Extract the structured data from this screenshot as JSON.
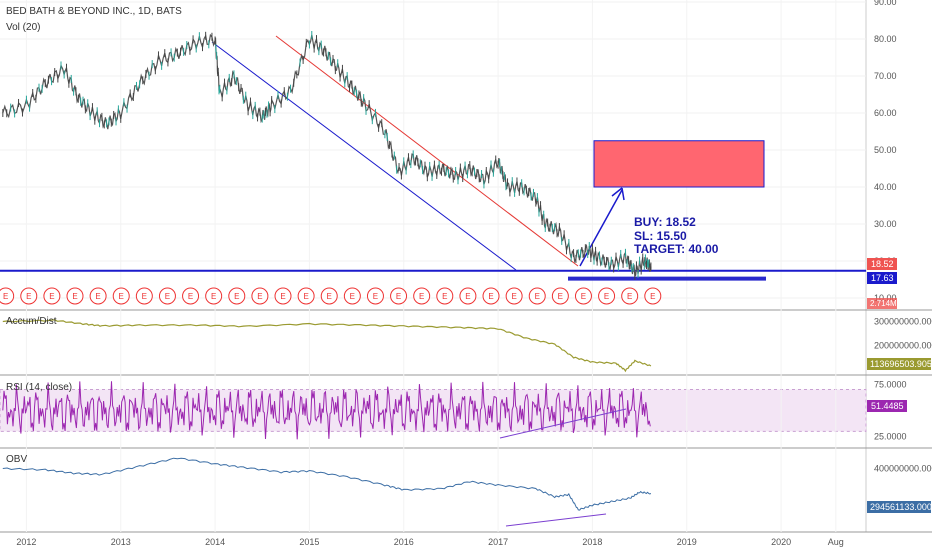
{
  "chart_data": {
    "type": "line",
    "title": "BED BATH & BEYOND INC., 1D, BATS",
    "subtitle": "Vol (20)",
    "x_ticks": [
      "2012",
      "2013",
      "2014",
      "2015",
      "2016",
      "2017",
      "2018",
      "2019",
      "2020",
      "Aug"
    ],
    "x_tick_years": [
      2012,
      2013,
      2014,
      2015,
      2016,
      2017,
      2018,
      2019,
      2020,
      2020.58
    ],
    "price_axis": {
      "ticks": [
        "90.00",
        "80.00",
        "70.00",
        "60.00",
        "50.00",
        "40.00",
        "30.00",
        "20.00",
        "10.00"
      ],
      "values": [
        90,
        80,
        70,
        60,
        50,
        40,
        30,
        20,
        10
      ],
      "ylim": [
        10,
        90
      ]
    },
    "price_series": [
      {
        "x": 2011.75,
        "y": 60
      },
      {
        "x": 2012.0,
        "y": 62
      },
      {
        "x": 2012.2,
        "y": 68
      },
      {
        "x": 2012.4,
        "y": 72
      },
      {
        "x": 2012.55,
        "y": 64
      },
      {
        "x": 2012.7,
        "y": 60
      },
      {
        "x": 2012.85,
        "y": 57
      },
      {
        "x": 2013.0,
        "y": 60
      },
      {
        "x": 2013.2,
        "y": 68
      },
      {
        "x": 2013.4,
        "y": 74
      },
      {
        "x": 2013.6,
        "y": 76
      },
      {
        "x": 2013.8,
        "y": 79
      },
      {
        "x": 2014.0,
        "y": 80
      },
      {
        "x": 2014.05,
        "y": 65
      },
      {
        "x": 2014.2,
        "y": 70
      },
      {
        "x": 2014.35,
        "y": 62
      },
      {
        "x": 2014.5,
        "y": 59
      },
      {
        "x": 2014.6,
        "y": 62
      },
      {
        "x": 2014.8,
        "y": 66
      },
      {
        "x": 2015.0,
        "y": 80
      },
      {
        "x": 2015.15,
        "y": 77
      },
      {
        "x": 2015.3,
        "y": 72
      },
      {
        "x": 2015.45,
        "y": 67
      },
      {
        "x": 2015.6,
        "y": 62
      },
      {
        "x": 2015.8,
        "y": 55
      },
      {
        "x": 2015.95,
        "y": 44
      },
      {
        "x": 2016.1,
        "y": 48
      },
      {
        "x": 2016.25,
        "y": 44
      },
      {
        "x": 2016.4,
        "y": 45
      },
      {
        "x": 2016.55,
        "y": 43
      },
      {
        "x": 2016.7,
        "y": 45
      },
      {
        "x": 2016.85,
        "y": 42
      },
      {
        "x": 2017.0,
        "y": 47
      },
      {
        "x": 2017.1,
        "y": 40
      },
      {
        "x": 2017.25,
        "y": 40
      },
      {
        "x": 2017.4,
        "y": 37
      },
      {
        "x": 2017.5,
        "y": 30
      },
      {
        "x": 2017.65,
        "y": 28
      },
      {
        "x": 2017.8,
        "y": 21
      },
      {
        "x": 2017.95,
        "y": 23
      },
      {
        "x": 2018.05,
        "y": 21
      },
      {
        "x": 2018.2,
        "y": 19
      },
      {
        "x": 2018.35,
        "y": 21
      },
      {
        "x": 2018.45,
        "y": 17
      },
      {
        "x": 2018.55,
        "y": 20
      },
      {
        "x": 2018.62,
        "y": 18.52
      }
    ],
    "price_last": "18.52",
    "level_label": "17.63",
    "volume_label": "2.714M",
    "earnings_marker": "E",
    "earnings_count": 30,
    "trade": {
      "buy_label": "BUY:  18.52",
      "sl_label": "SL:  15.50",
      "target_label": "TARGET:  40.00",
      "target_zone": [
        40,
        52.5
      ],
      "sl_level": 15.5,
      "support_level": 17.63
    },
    "accum_dist": {
      "title": "Accum/Dist",
      "ticks": [
        "300000000.0000",
        "200000000.0000"
      ],
      "tick_values": [
        300000000,
        200000000
      ],
      "ylim": [
        80000000,
        340000000
      ],
      "last": "113696503.9052",
      "series": [
        {
          "x": 2011.75,
          "y": 300000000
        },
        {
          "x": 2012.3,
          "y": 305000000
        },
        {
          "x": 2012.6,
          "y": 290000000
        },
        {
          "x": 2012.8,
          "y": 282000000
        },
        {
          "x": 2013.2,
          "y": 285000000
        },
        {
          "x": 2013.8,
          "y": 285000000
        },
        {
          "x": 2014.3,
          "y": 280000000
        },
        {
          "x": 2015.0,
          "y": 290000000
        },
        {
          "x": 2015.6,
          "y": 285000000
        },
        {
          "x": 2016.1,
          "y": 280000000
        },
        {
          "x": 2016.6,
          "y": 275000000
        },
        {
          "x": 2017.0,
          "y": 270000000
        },
        {
          "x": 2017.3,
          "y": 230000000
        },
        {
          "x": 2017.6,
          "y": 205000000
        },
        {
          "x": 2017.8,
          "y": 150000000
        },
        {
          "x": 2018.0,
          "y": 130000000
        },
        {
          "x": 2018.25,
          "y": 125000000
        },
        {
          "x": 2018.35,
          "y": 95000000
        },
        {
          "x": 2018.45,
          "y": 135000000
        },
        {
          "x": 2018.62,
          "y": 113700000
        }
      ]
    },
    "rsi": {
      "title": "RSI (14, close)",
      "ticks": [
        "75.0000",
        "25.0000"
      ],
      "tick_values": [
        75,
        25
      ],
      "ylim": [
        15,
        82
      ],
      "band": [
        30,
        70
      ],
      "last": "51.4485",
      "amplitude_note": "oscillating",
      "trendline_label": ""
    },
    "obv": {
      "title": "OBV",
      "ticks": [
        "400000000.0000"
      ],
      "tick_values": [
        400000000
      ],
      "ylim": [
        140000000,
        470000000
      ],
      "last": "294561133.0000",
      "series": [
        {
          "x": 2011.75,
          "y": 400000000
        },
        {
          "x": 2012.2,
          "y": 395000000
        },
        {
          "x": 2012.5,
          "y": 380000000
        },
        {
          "x": 2012.8,
          "y": 375000000
        },
        {
          "x": 2013.2,
          "y": 410000000
        },
        {
          "x": 2013.6,
          "y": 445000000
        },
        {
          "x": 2014.0,
          "y": 420000000
        },
        {
          "x": 2014.3,
          "y": 405000000
        },
        {
          "x": 2014.7,
          "y": 385000000
        },
        {
          "x": 2015.0,
          "y": 390000000
        },
        {
          "x": 2015.4,
          "y": 365000000
        },
        {
          "x": 2015.8,
          "y": 330000000
        },
        {
          "x": 2016.0,
          "y": 310000000
        },
        {
          "x": 2016.4,
          "y": 315000000
        },
        {
          "x": 2016.7,
          "y": 345000000
        },
        {
          "x": 2017.0,
          "y": 330000000
        },
        {
          "x": 2017.4,
          "y": 315000000
        },
        {
          "x": 2017.6,
          "y": 280000000
        },
        {
          "x": 2017.75,
          "y": 290000000
        },
        {
          "x": 2017.85,
          "y": 225000000
        },
        {
          "x": 2018.0,
          "y": 245000000
        },
        {
          "x": 2018.2,
          "y": 260000000
        },
        {
          "x": 2018.4,
          "y": 275000000
        },
        {
          "x": 2018.5,
          "y": 300000000
        },
        {
          "x": 2018.62,
          "y": 294560000
        }
      ]
    },
    "colors": {
      "price_up": "#26a69a",
      "price_line": "#555555",
      "down_trend": "#e53935",
      "channel_line": "#1a1acc",
      "support": "#1a1acc",
      "target_box": "#ff6670",
      "arrow": "#1a1acc",
      "accum": "#9a9a30",
      "rsi": "#9c27b0",
      "rsi_band": "#f3e5f5",
      "obv": "#3c6ea5",
      "price_tag": "#ef5350",
      "level_tag": "#1a1acc"
    }
  }
}
